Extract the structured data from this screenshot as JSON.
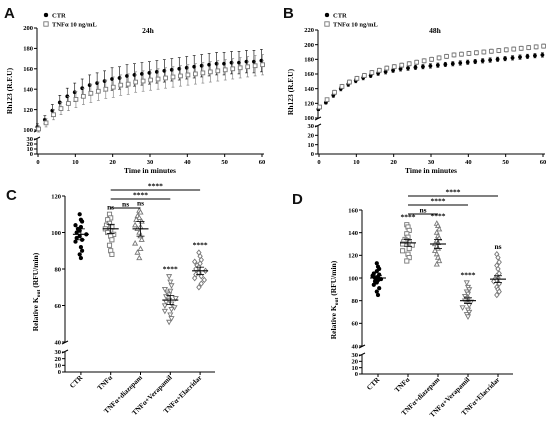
{
  "panels": {
    "A": "A",
    "B": "B",
    "C": "C",
    "D": "D"
  },
  "chart_data": [
    {
      "panel": "A",
      "type": "line",
      "annotation": "24h",
      "xlabel": "Time in minutes",
      "ylabel": "Rh123 (R.F.U)",
      "xlim": [
        0,
        60
      ],
      "xticks": [
        0,
        10,
        20,
        30,
        40,
        50,
        60
      ],
      "ylim_upper": [
        100,
        200
      ],
      "yticks_upper": [
        100,
        120,
        140,
        160,
        180,
        200
      ],
      "ylim_lower": [
        0,
        30
      ],
      "yticks_lower": [
        0,
        10,
        20,
        30
      ],
      "legend_position": "top-left",
      "series": [
        {
          "name": "CTR",
          "marker": "filled-circle",
          "color": "#000000",
          "x": [
            0,
            2,
            4,
            6,
            8,
            10,
            12,
            14,
            16,
            18,
            20,
            22,
            24,
            26,
            28,
            30,
            32,
            34,
            36,
            38,
            40,
            42,
            44,
            46,
            48,
            50,
            52,
            54,
            56,
            58,
            60
          ],
          "y": [
            103,
            110,
            119,
            127,
            133,
            137,
            141,
            144,
            146,
            148,
            150,
            151,
            153,
            154,
            155,
            156,
            157,
            158,
            159,
            160,
            161,
            162,
            163,
            164,
            165,
            165,
            166,
            166,
            167,
            167,
            168
          ],
          "err": [
            3,
            4,
            6,
            7,
            8,
            9,
            9,
            10,
            10,
            10,
            11,
            11,
            11,
            11,
            11,
            11,
            11,
            11,
            11,
            11,
            11,
            11,
            11,
            11,
            11,
            11,
            11,
            11,
            11,
            11,
            11
          ]
        },
        {
          "name": "TNFα 10 ng/mL",
          "marker": "open-square",
          "color": "#777777",
          "x": [
            0,
            2,
            4,
            6,
            8,
            10,
            12,
            14,
            16,
            18,
            20,
            22,
            24,
            26,
            28,
            30,
            32,
            34,
            36,
            38,
            40,
            42,
            44,
            46,
            48,
            50,
            52,
            54,
            56,
            58,
            60
          ],
          "y": [
            101,
            107,
            115,
            121,
            126,
            130,
            133,
            136,
            138,
            140,
            142,
            144,
            145,
            147,
            148,
            149,
            150,
            151,
            152,
            153,
            154,
            155,
            156,
            157,
            158,
            159,
            160,
            161,
            162,
            163,
            164
          ],
          "err": [
            3,
            4,
            5,
            6,
            7,
            8,
            8,
            9,
            9,
            9,
            10,
            10,
            10,
            10,
            10,
            10,
            10,
            10,
            10,
            10,
            10,
            10,
            10,
            10,
            10,
            10,
            10,
            10,
            10,
            10,
            10
          ]
        }
      ]
    },
    {
      "panel": "B",
      "type": "line",
      "annotation": "48h",
      "xlabel": "Time in minutes",
      "ylabel": "Rh123 (R.F.U)",
      "xlim": [
        0,
        60
      ],
      "xticks": [
        0,
        10,
        20,
        30,
        40,
        50,
        60
      ],
      "ylim_upper": [
        100,
        220
      ],
      "yticks_upper": [
        100,
        120,
        140,
        160,
        180,
        200,
        220
      ],
      "ylim_lower": [
        0,
        30
      ],
      "yticks_lower": [
        0,
        10,
        20,
        30
      ],
      "legend_position": "top-left",
      "series": [
        {
          "name": "CTR",
          "marker": "filled-circle",
          "color": "#000000",
          "x": [
            0,
            2,
            4,
            6,
            8,
            10,
            12,
            14,
            16,
            18,
            20,
            22,
            24,
            26,
            28,
            30,
            32,
            34,
            36,
            38,
            40,
            42,
            44,
            46,
            48,
            50,
            52,
            54,
            56,
            58,
            60
          ],
          "y": [
            112,
            121,
            131,
            140,
            146,
            151,
            155,
            158,
            161,
            163,
            165,
            167,
            168,
            169,
            170,
            171,
            172,
            173,
            174,
            175,
            176,
            177,
            178,
            179,
            180,
            181,
            182,
            183,
            184,
            185,
            186
          ],
          "err": [
            2,
            2,
            3,
            3,
            3,
            3,
            3,
            3,
            3,
            3,
            3,
            3,
            3,
            3,
            3,
            3,
            3,
            3,
            3,
            3,
            3,
            3,
            3,
            3,
            3,
            3,
            3,
            3,
            3,
            3,
            3
          ]
        },
        {
          "name": "TNFα 10 ng/mL",
          "marker": "open-square",
          "color": "#777777",
          "x": [
            0,
            2,
            4,
            6,
            8,
            10,
            12,
            14,
            16,
            18,
            20,
            22,
            24,
            26,
            28,
            30,
            32,
            34,
            36,
            38,
            40,
            42,
            44,
            46,
            48,
            50,
            52,
            54,
            56,
            58,
            60
          ],
          "y": [
            115,
            125,
            135,
            143,
            149,
            154,
            158,
            162,
            165,
            168,
            170,
            172,
            174,
            176,
            178,
            180,
            182,
            184,
            186,
            187,
            188,
            189,
            190,
            191,
            192,
            193,
            194,
            195,
            196,
            197,
            198
          ],
          "err": [
            2,
            2,
            3,
            3,
            3,
            3,
            3,
            3,
            3,
            3,
            3,
            3,
            3,
            3,
            3,
            3,
            3,
            3,
            3,
            3,
            3,
            3,
            3,
            3,
            3,
            3,
            3,
            3,
            3,
            3,
            3
          ]
        }
      ]
    },
    {
      "panel": "C",
      "type": "scatter",
      "ylabel_main": "Relative K",
      "ylabel_sub": "out",
      "ylabel_unit": " (RFU/min)",
      "categories": [
        "CTR",
        "TNFα",
        "TNFα+diazepam",
        "TNFα+Verapamil",
        "TNFα+Elacridar"
      ],
      "ylim_upper": [
        40,
        120
      ],
      "yticks_upper": [
        40,
        60,
        80,
        100,
        120
      ],
      "ylim_lower": [
        0,
        30
      ],
      "yticks_lower": [
        0,
        10,
        20,
        30
      ],
      "significance_above": [
        "",
        "ns",
        "ns",
        "****",
        "****"
      ],
      "brackets": [
        {
          "from": "TNFα",
          "to": "TNFα+Elacridar",
          "label": "****"
        },
        {
          "from": "TNFα",
          "to": "TNFα+Verapamil",
          "label": "****"
        },
        {
          "from": "TNFα",
          "to": "TNFα+diazepam",
          "label": "ns"
        }
      ],
      "groups": [
        {
          "name": "CTR",
          "marker": "filled-circle",
          "mean": 99,
          "sem": 3,
          "values": [
            110,
            107,
            106,
            104,
            103,
            102,
            101,
            100,
            99,
            98,
            97,
            96,
            95,
            92,
            90,
            88,
            86
          ]
        },
        {
          "name": "TNFα",
          "marker": "open-square",
          "mean": 102,
          "sem": 2.5,
          "values": [
            110,
            108,
            107,
            105,
            104,
            103,
            102,
            101,
            100,
            99,
            98,
            96,
            93,
            90,
            88
          ]
        },
        {
          "name": "TNFα+diazepam",
          "marker": "open-triangle",
          "mean": 102,
          "sem": 4,
          "values": [
            112,
            111,
            109,
            108,
            107,
            106,
            104,
            103,
            102,
            100,
            98,
            96,
            94,
            91,
            89,
            86
          ]
        },
        {
          "name": "TNFα+Verapamil",
          "marker": "open-triangle-down",
          "mean": 63,
          "sem": 2.5,
          "values": [
            76,
            73,
            71,
            69,
            68,
            67,
            66,
            65,
            64,
            63,
            62,
            61,
            60,
            59,
            58,
            57,
            55,
            53,
            51
          ]
        },
        {
          "name": "TNFα+Elacridar",
          "marker": "open-diamond",
          "mean": 79,
          "sem": 2,
          "values": [
            89,
            87,
            85,
            84,
            83,
            82,
            81,
            80,
            79,
            78,
            77,
            76,
            75,
            74,
            72,
            70
          ]
        }
      ]
    },
    {
      "panel": "D",
      "type": "scatter",
      "ylabel_main": "Relative K",
      "ylabel_sub": "out",
      "ylabel_unit": " (RFU/min)",
      "categories": [
        "CTR",
        "TNFα",
        "TNFα+diazepam",
        "TNFα+Verapamil",
        "TNFα+Elacridar"
      ],
      "ylim_upper": [
        40,
        160
      ],
      "yticks_upper": [
        40,
        60,
        80,
        100,
        120,
        140,
        160
      ],
      "ylim_lower": [
        0,
        30
      ],
      "yticks_lower": [
        0,
        10,
        20,
        30
      ],
      "significance_above": [
        "",
        "****",
        "****",
        "****",
        "ns"
      ],
      "brackets": [
        {
          "from": "TNFα",
          "to": "TNFα+Elacridar",
          "label": "****"
        },
        {
          "from": "TNFα",
          "to": "TNFα+Verapamil",
          "label": "****"
        },
        {
          "from": "TNFα",
          "to": "TNFα+diazepam",
          "label": "ns"
        }
      ],
      "groups": [
        {
          "name": "CTR",
          "marker": "filled-circle",
          "mean": 100,
          "sem": 2,
          "values": [
            113,
            110,
            108,
            106,
            104,
            103,
            102,
            101,
            100,
            99,
            98,
            97,
            96,
            94,
            91,
            88,
            85
          ]
        },
        {
          "name": "TNFα",
          "marker": "open-square",
          "mean": 131,
          "sem": 3,
          "values": [
            147,
            145,
            142,
            139,
            136,
            134,
            133,
            132,
            131,
            130,
            129,
            126,
            124,
            121,
            118,
            115
          ]
        },
        {
          "name": "TNFα+diazepam",
          "marker": "open-triangle",
          "mean": 130,
          "sem": 4,
          "values": [
            148,
            146,
            143,
            140,
            137,
            135,
            133,
            131,
            130,
            128,
            126,
            124,
            121,
            118,
            115,
            112
          ]
        },
        {
          "name": "TNFα+Verapamil",
          "marker": "open-triangle-down",
          "mean": 80,
          "sem": 2.5,
          "values": [
            96,
            92,
            90,
            88,
            86,
            84,
            82,
            81,
            80,
            79,
            78,
            76,
            74,
            72,
            70,
            68,
            66
          ]
        },
        {
          "name": "TNFα+Elacridar",
          "marker": "open-diamond",
          "mean": 99,
          "sem": 3,
          "values": [
            121,
            118,
            114,
            111,
            108,
            104,
            102,
            100,
            99,
            98,
            97,
            95,
            92,
            90,
            88,
            85
          ]
        }
      ]
    }
  ]
}
